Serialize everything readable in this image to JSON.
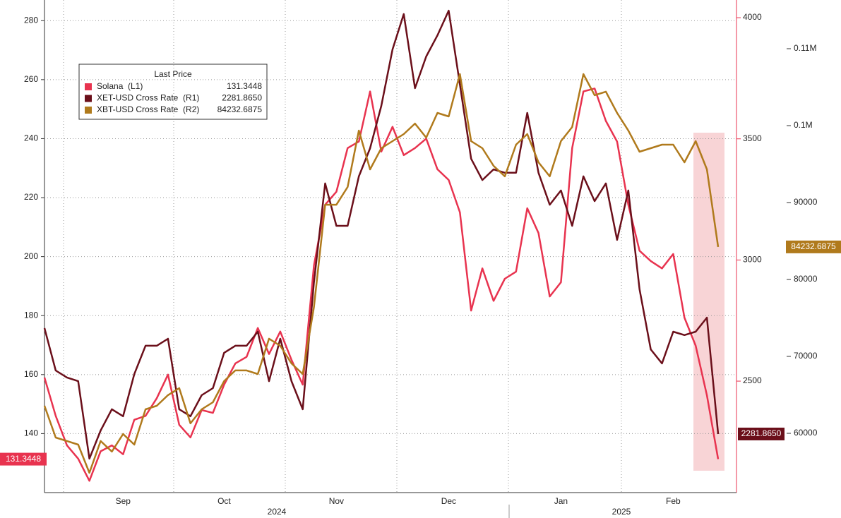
{
  "chart_data": {
    "type": "line",
    "legend_title": "Last Price",
    "categories": [
      null,
      null,
      null,
      null,
      null,
      null,
      null,
      "Sep",
      null,
      null,
      null,
      null,
      null,
      null,
      null,
      null,
      "Oct",
      null,
      null,
      null,
      null,
      null,
      null,
      null,
      null,
      null,
      "Nov",
      null,
      null,
      null,
      null,
      null,
      null,
      null,
      null,
      null,
      "Dec",
      null,
      null,
      null,
      null,
      null,
      null,
      null,
      null,
      null,
      "Jan",
      null,
      null,
      null,
      null,
      null,
      null,
      null,
      null,
      null,
      "Feb",
      null,
      null,
      null,
      null
    ],
    "years": [
      "2024",
      "2025"
    ],
    "ylim": [
      120,
      287
    ],
    "yticks": [
      140,
      160,
      180,
      200,
      220,
      240,
      260,
      280
    ],
    "y2lim": [
      2040,
      4073
    ],
    "y2ticks": [
      2500,
      3000,
      3500,
      4000
    ],
    "y3lim": [
      52294,
      116330
    ],
    "y3ticks": [
      60000,
      70000,
      80000,
      90000,
      {
        "value": 100000,
        "label": "0.1M"
      },
      {
        "value": 110000,
        "label": "0.11M"
      }
    ],
    "grid": true,
    "legend": "upper left",
    "series": [
      {
        "name": "Solana  (L1)",
        "color": "#e8334f",
        "axis": "y",
        "last_label": "131.3448",
        "values": [
          159,
          146,
          136,
          131.5,
          124,
          134,
          136,
          133,
          144.7,
          146,
          152,
          160,
          143,
          138.7,
          148,
          147,
          156.6,
          163.8,
          166,
          175.8,
          167,
          174.6,
          165,
          156.6,
          197,
          217.6,
          222,
          236.8,
          239,
          256,
          235.6,
          244,
          234.4,
          236.8,
          240,
          229.6,
          226,
          215,
          181.7,
          196,
          185,
          192.5,
          194.9,
          216.4,
          208,
          186.5,
          191.3,
          236.8,
          256,
          257,
          246,
          239,
          217.6,
          202,
          198.5,
          196,
          200.9,
          179.3,
          169.8,
          153,
          131.3448
        ]
      },
      {
        "name": "XET-USD Cross Rate  (R1)",
        "color": "#6b0f1a",
        "axis": "y2",
        "last_label": "2281.8650",
        "values": [
          2719,
          2544,
          2515,
          2500,
          2180,
          2296,
          2384,
          2355,
          2529,
          2646,
          2646,
          2675,
          2384,
          2355,
          2442,
          2471,
          2617,
          2646,
          2646,
          2704,
          2500,
          2675,
          2500,
          2384,
          2908,
          3316,
          3141,
          3141,
          3345,
          3461,
          3636,
          3869,
          4015,
          3709,
          3840,
          3927,
          4029,
          3724,
          3418,
          3330,
          3374,
          3360,
          3360,
          3607,
          3360,
          3228,
          3287,
          3141,
          3345,
          3243,
          3316,
          3083,
          3287,
          2879,
          2631,
          2573,
          2704,
          2690,
          2704,
          2762,
          2281.865
        ]
      },
      {
        "name": "XBT-USD Cross Rate  (R2)",
        "color": "#b07a1c",
        "axis": "y3",
        "last_label": "84232.6875",
        "values": [
          63580,
          59450,
          59000,
          58530,
          54860,
          59000,
          57620,
          59910,
          58530,
          63120,
          63580,
          64960,
          65870,
          61290,
          63120,
          64040,
          66790,
          68170,
          68170,
          67710,
          72300,
          71380,
          69080,
          67710,
          76420,
          89720,
          89720,
          92020,
          99360,
          94310,
          97060,
          97980,
          98900,
          100270,
          98440,
          101650,
          101190,
          106700,
          97980,
          97060,
          94770,
          93400,
          97520,
          98900,
          95230,
          93400,
          97980,
          99820,
          106700,
          103950,
          104410,
          101650,
          99360,
          96610,
          97060,
          97520,
          97520,
          95230,
          97980,
          94310,
          84232.6875
        ]
      }
    ]
  }
}
